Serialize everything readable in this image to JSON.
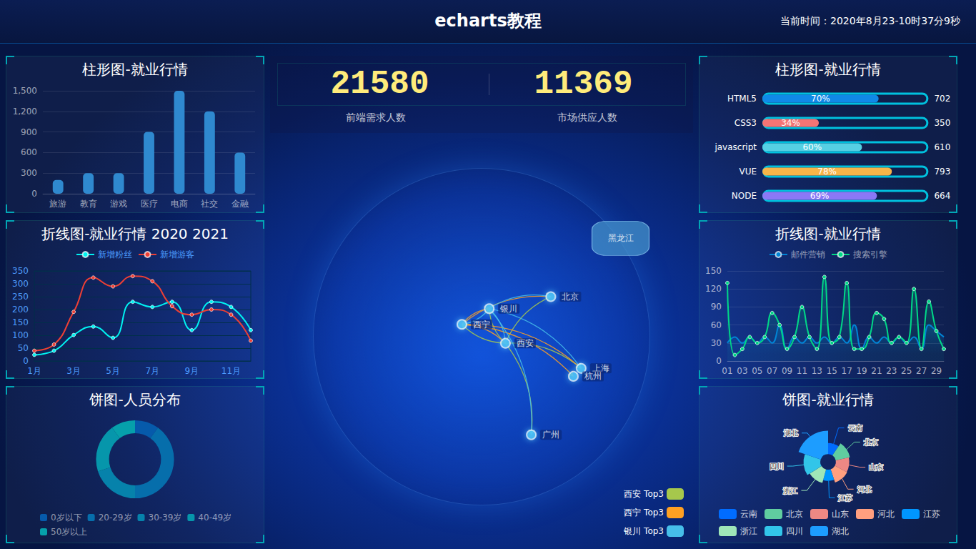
{
  "header": {
    "title": "echarts教程",
    "time": "当前时间：2020年8月23-10时37分9秒"
  },
  "stats": [
    {
      "value": 21580,
      "label": "前端需求人数"
    },
    {
      "value": 11369,
      "label": "市场供应人数"
    }
  ],
  "chart_data": [
    {
      "type": "bar",
      "title": "柱形图-就业行情",
      "categories": [
        "旅游",
        "教育",
        "游戏",
        "医疗",
        "电商",
        "社交",
        "金融"
      ],
      "values": [
        200,
        300,
        300,
        900,
        1500,
        1200,
        600
      ],
      "color": "#2f89cf",
      "ylim": [
        0,
        1500
      ],
      "yticks": [
        0,
        300,
        600,
        900,
        {
          "value": 1200,
          "label": "1,200"
        },
        {
          "value": 1500,
          "label": "1,500"
        }
      ],
      "grid": true
    },
    {
      "type": "line",
      "title": "折线图-就业行情 2020 2021",
      "categories": [
        "1月",
        null,
        "3月",
        null,
        "5月",
        null,
        "7月",
        null,
        "9月",
        null,
        "11月",
        null
      ],
      "series": [
        {
          "name": "新增粉丝",
          "color": "#00f2f1",
          "marker": "circle",
          "values": [
            24,
            40,
            101,
            134,
            90,
            230,
            210,
            230,
            120,
            230,
            210,
            120
          ]
        },
        {
          "name": "新增游客",
          "color": "#ed3f35",
          "marker": "circle",
          "values": [
            40,
            64,
            191,
            324,
            290,
            330,
            310,
            213,
            180,
            200,
            180,
            79
          ]
        }
      ],
      "ylim": [
        0,
        350
      ],
      "yticks": [
        0,
        50,
        100,
        150,
        200,
        250,
        300,
        350
      ],
      "grid": true,
      "legend": "top"
    },
    {
      "type": "pie",
      "title": "饼图-人员分布",
      "categories": [
        "0岁以下",
        "20-29岁",
        "30-39岁",
        "40-49岁",
        "50岁以上"
      ],
      "values": [
        1,
        4,
        2,
        2,
        1
      ],
      "colors": [
        "#065aab",
        "#066eab",
        "#0682ab",
        "#0696ab",
        "#06a0ab"
      ],
      "legend": "bottom"
    },
    {
      "type": "bar",
      "title": "柱形图-就业行情",
      "orientation": "horizontal",
      "categories": [
        "HTML5",
        "CSS3",
        "javascript",
        "VUE",
        "NODE"
      ],
      "values": [
        70,
        34,
        60,
        78,
        69
      ],
      "value_labels": [
        "70%",
        "34%",
        "60%",
        "78%",
        "69%"
      ],
      "totals": [
        702,
        350,
        610,
        793,
        664
      ],
      "colors": [
        "#1089e7",
        "#f57474",
        "#56d0e3",
        "#f8b448",
        "#8b78f6"
      ],
      "xlim": [
        0,
        100
      ],
      "data_labels": true,
      "tick_labels": "y"
    },
    {
      "type": "line",
      "title": "折线图-就业行情",
      "categories": [
        "01",
        null,
        "03",
        null,
        "05",
        null,
        "07",
        null,
        "09",
        null,
        "11",
        null,
        "13",
        null,
        "15",
        null,
        "17",
        null,
        "19",
        null,
        "21",
        null,
        "23",
        null,
        "25",
        null,
        "27",
        null,
        "29",
        null
      ],
      "series": [
        {
          "name": "邮件营销",
          "color": "#0184d5",
          "marker": "none",
          "values": [
            30,
            40,
            30,
            40,
            30,
            40,
            30,
            60,
            20,
            40,
            30,
            40,
            30,
            40,
            30,
            40,
            30,
            60,
            20,
            40,
            30,
            40,
            30,
            40,
            30,
            40,
            20,
            60,
            50,
            40
          ]
        },
        {
          "name": "搜索引擎",
          "color": "#00d887",
          "marker": "circle",
          "values": [
            130,
            10,
            20,
            40,
            30,
            40,
            80,
            60,
            20,
            40,
            90,
            40,
            20,
            140,
            30,
            40,
            130,
            20,
            20,
            40,
            80,
            70,
            30,
            40,
            30,
            120,
            20,
            99,
            50,
            20
          ]
        }
      ],
      "ylim": [
        0,
        150
      ],
      "yticks": [
        0,
        30,
        60,
        90,
        120,
        150
      ],
      "grid": true,
      "legend": "top"
    },
    {
      "type": "rose",
      "title": "饼图-就业行情",
      "categories": [
        "云南",
        "北京",
        "山东",
        "河北",
        "江苏",
        "浙江",
        "四川",
        "湖北"
      ],
      "values": [
        20,
        26,
        24,
        25,
        20,
        25,
        30,
        42
      ],
      "colors": [
        "#006cff",
        "#60cda0",
        "#ed8884",
        "#ff9f7f",
        "#0096ff",
        "#9fe6b8",
        "#32c5e9",
        "#1d9dff"
      ],
      "legend": "bottom"
    },
    {
      "type": "map",
      "cities": [
        {
          "name": "北京",
          "coords": [
            116.46,
            39.92
          ]
        },
        {
          "name": "银川",
          "coords": [
            106.27,
            38.47
          ]
        },
        {
          "name": "西宁",
          "coords": [
            101.74,
            36.56
          ]
        },
        {
          "name": "西安",
          "coords": [
            108.95,
            34.27
          ]
        },
        {
          "name": "上海",
          "coords": [
            121.48,
            31.22
          ]
        },
        {
          "name": "杭州",
          "coords": [
            120.19,
            30.26
          ]
        },
        {
          "name": "广州",
          "coords": [
            113.23,
            23.16
          ]
        }
      ],
      "regions": [
        {
          "name": "黑龙江",
          "coords": [
            128.0,
            47.0
          ]
        }
      ],
      "series": [
        {
          "name": "西安 Top3",
          "origin": "西安",
          "destinations": [
            "北京",
            "上海",
            "广州",
            "西宁",
            "银川"
          ],
          "color": "#a6c84c"
        },
        {
          "name": "西宁 Top3",
          "origin": "西宁",
          "destinations": [
            "北京",
            "上海",
            "杭州",
            "西安",
            "银川"
          ],
          "color": "#ffa022"
        },
        {
          "name": "银川 Top3",
          "origin": "银川",
          "destinations": [
            "北京",
            "广州",
            "上海",
            "西安",
            "西宁"
          ],
          "color": "#46bee9"
        }
      ],
      "xlim": [
        70,
        140
      ],
      "ylim": [
        10,
        59
      ],
      "tick_labels": false,
      "legend": "bottom-right"
    }
  ]
}
